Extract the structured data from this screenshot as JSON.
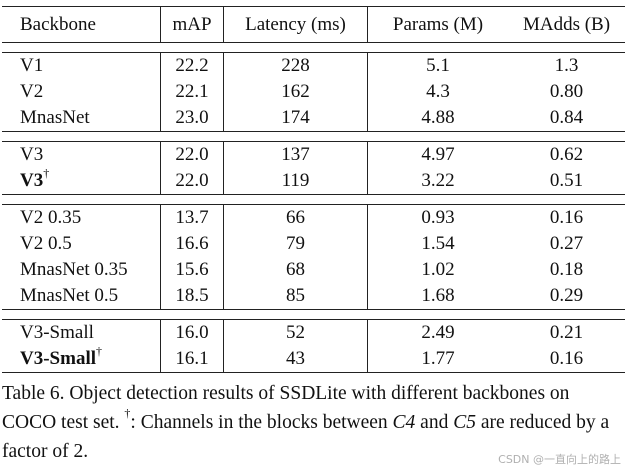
{
  "table": {
    "headers": [
      "Backbone",
      "mAP",
      "Latency (ms)",
      "Params (M)",
      "MAdds (B)"
    ],
    "groups": [
      [
        {
          "backbone": "V1",
          "mark": "",
          "bold": false,
          "mAP": "22.2",
          "latency": "228",
          "params": "5.1",
          "madds": "1.3"
        },
        {
          "backbone": "V2",
          "mark": "",
          "bold": false,
          "mAP": "22.1",
          "latency": "162",
          "params": "4.3",
          "madds": "0.80"
        },
        {
          "backbone": "MnasNet",
          "mark": "",
          "bold": false,
          "mAP": "23.0",
          "latency": "174",
          "params": "4.88",
          "madds": "0.84"
        }
      ],
      [
        {
          "backbone": "V3",
          "mark": "",
          "bold": false,
          "mAP": "22.0",
          "latency": "137",
          "params": "4.97",
          "madds": "0.62"
        },
        {
          "backbone": "V3",
          "mark": "†",
          "bold": true,
          "mAP": "22.0",
          "latency": "119",
          "params": "3.22",
          "madds": "0.51"
        }
      ],
      [
        {
          "backbone": "V2 0.35",
          "mark": "",
          "bold": false,
          "mAP": "13.7",
          "latency": "66",
          "params": "0.93",
          "madds": "0.16"
        },
        {
          "backbone": "V2 0.5",
          "mark": "",
          "bold": false,
          "mAP": "16.6",
          "latency": "79",
          "params": "1.54",
          "madds": "0.27"
        },
        {
          "backbone": "MnasNet 0.35",
          "mark": "",
          "bold": false,
          "mAP": "15.6",
          "latency": "68",
          "params": "1.02",
          "madds": "0.18"
        },
        {
          "backbone": "MnasNet 0.5",
          "mark": "",
          "bold": false,
          "mAP": "18.5",
          "latency": "85",
          "params": "1.68",
          "madds": "0.29"
        }
      ],
      [
        {
          "backbone": "V3-Small",
          "mark": "",
          "bold": false,
          "mAP": "16.0",
          "latency": "52",
          "params": "2.49",
          "madds": "0.21"
        },
        {
          "backbone": "V3-Small",
          "mark": "†",
          "bold": true,
          "mAP": "16.1",
          "latency": "43",
          "params": "1.77",
          "madds": "0.16"
        }
      ]
    ]
  },
  "caption": {
    "part1": "Table 6. Object detection results of SSDLite with different backbones on COCO test set. ",
    "dagger": "†",
    "part2": ": Channels in the blocks between ",
    "c4": "C4",
    "part3": " and ",
    "c5": "C5",
    "part4": " are reduced by a factor of 2."
  },
  "watermark": "CSDN @一直向上的路上"
}
